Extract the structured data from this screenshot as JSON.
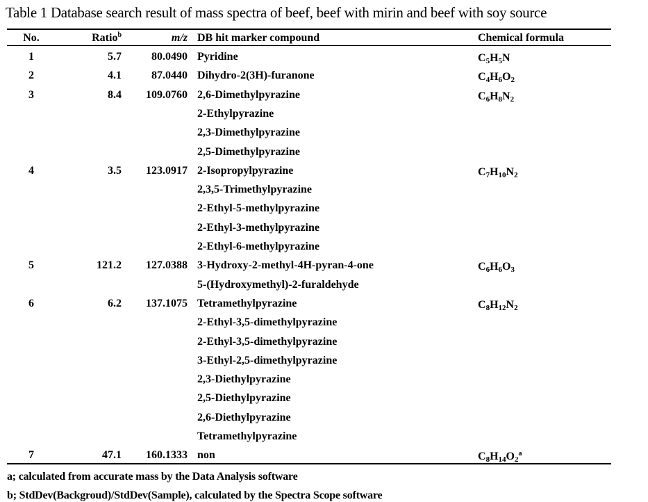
{
  "title": "Table 1 Database search result of mass spectra of beef, beef with mirin and beef with soy source",
  "headers": {
    "no": "No.",
    "ratio": "Ratio",
    "ratio_sup": "b",
    "mz": "m/z",
    "compound": "DB hit marker compound",
    "formula": "Chemical formula"
  },
  "rows": [
    {
      "no": "1",
      "ratio": "5.7",
      "mz": "80.0490",
      "compounds": [
        "Pyridine"
      ],
      "formula": [
        [
          "C",
          "5"
        ],
        [
          "H",
          "5"
        ],
        [
          "N",
          ""
        ]
      ],
      "formula_sup": ""
    },
    {
      "no": "2",
      "ratio": "4.1",
      "mz": "87.0440",
      "compounds": [
        "Dihydro-2(3H)-furanone"
      ],
      "formula": [
        [
          "C",
          "4"
        ],
        [
          "H",
          "6"
        ],
        [
          "O",
          "2"
        ]
      ],
      "formula_sup": ""
    },
    {
      "no": "3",
      "ratio": "8.4",
      "mz": "109.0760",
      "compounds": [
        "2,6-Dimethylpyrazine",
        "2-Ethylpyrazine",
        "2,3-Dimethylpyrazine",
        "2,5-Dimethylpyrazine"
      ],
      "formula": [
        [
          "C",
          "6"
        ],
        [
          "H",
          "8"
        ],
        [
          "N",
          "2"
        ]
      ],
      "formula_sup": ""
    },
    {
      "no": "4",
      "ratio": "3.5",
      "mz": "123.0917",
      "compounds": [
        "2-Isopropylpyrazine",
        "2,3,5-Trimethylpyrazine",
        "2-Ethyl-5-methylpyrazine",
        "2-Ethyl-3-methylpyrazine",
        "2-Ethyl-6-methylpyrazine"
      ],
      "formula": [
        [
          "C",
          "7"
        ],
        [
          "H",
          "10"
        ],
        [
          "N",
          "2"
        ]
      ],
      "formula_sup": ""
    },
    {
      "no": "5",
      "ratio": "121.2",
      "mz": "127.0388",
      "compounds": [
        "3-Hydroxy-2-methyl-4H-pyran-4-one",
        "5-(Hydroxymethyl)-2-furaldehyde"
      ],
      "formula": [
        [
          "C",
          "6"
        ],
        [
          "H",
          "6"
        ],
        [
          "O",
          "3"
        ]
      ],
      "formula_sup": ""
    },
    {
      "no": "6",
      "ratio": "6.2",
      "mz": "137.1075",
      "compounds": [
        "Tetramethylpyrazine",
        "2-Ethyl-3,5-dimethylpyrazine",
        "2-Ethyl-3,5-dimethylpyrazine",
        "3-Ethyl-2,5-dimethylpyrazine",
        "2,3-Diethylpyrazine",
        "2,5-Diethylpyrazine",
        "2,6-Diethylpyrazine",
        "Tetramethylpyrazine"
      ],
      "formula": [
        [
          "C",
          "8"
        ],
        [
          "H",
          "12"
        ],
        [
          "N",
          "2"
        ]
      ],
      "formula_sup": ""
    },
    {
      "no": "7",
      "ratio": "47.1",
      "mz": "160.1333",
      "compounds": [
        "non"
      ],
      "formula": [
        [
          "C",
          "8"
        ],
        [
          "H",
          "14"
        ],
        [
          "O",
          "2"
        ]
      ],
      "formula_sup": "a"
    }
  ],
  "footnotes": [
    "a; calculated from accurate mass by the Data Analysis software",
    "b; StdDev(Backgroud)/StdDev(Sample), calculated by the Spectra Scope software"
  ]
}
